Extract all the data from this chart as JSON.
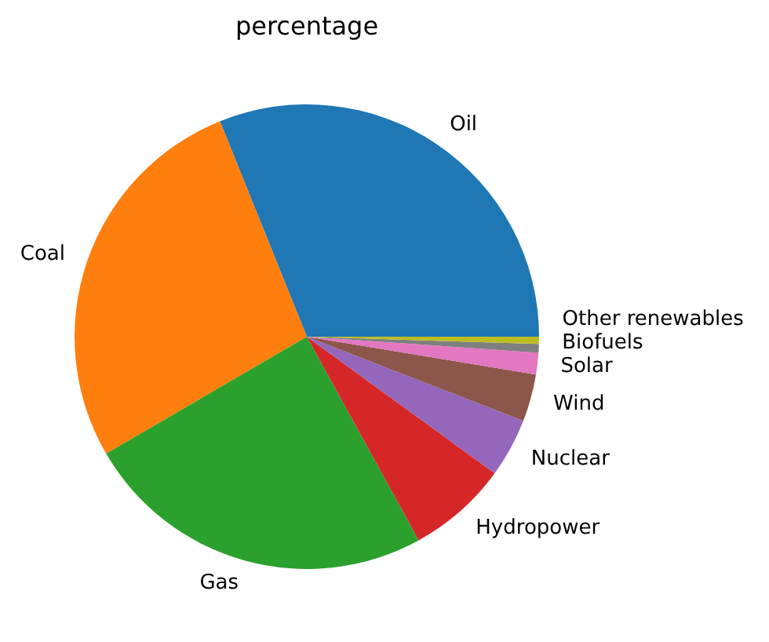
{
  "chart_data": {
    "type": "pie",
    "title": "percentage",
    "categories": [
      "Oil",
      "Coal",
      "Gas",
      "Hydropower",
      "Nuclear",
      "Wind",
      "Solar",
      "Biofuels",
      "Other renewables"
    ],
    "values": [
      31.1,
      27.3,
      24.6,
      7.0,
      4.1,
      3.3,
      1.5,
      0.6,
      0.5
    ],
    "colors": [
      "#1f77b4",
      "#ff7f0e",
      "#2ca02c",
      "#d62728",
      "#9467bd",
      "#8c564b",
      "#e377c2",
      "#7f7f7f",
      "#bcbd22"
    ]
  }
}
